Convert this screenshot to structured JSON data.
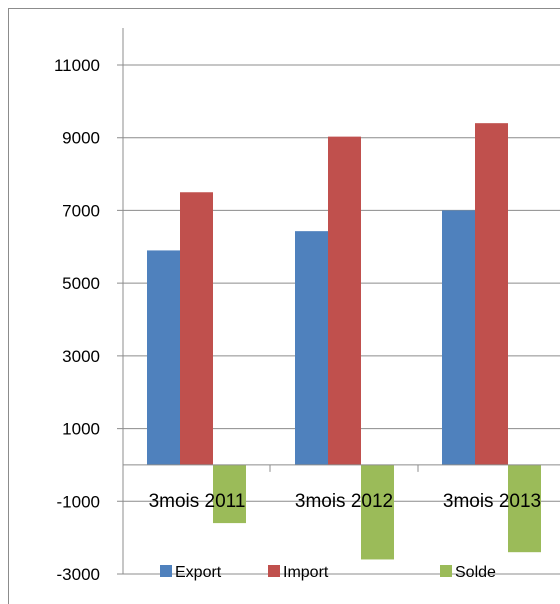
{
  "chart_data": {
    "type": "bar",
    "title": "",
    "xlabel": "",
    "ylabel": "",
    "categories": [
      "3mois 2011",
      "3mois 2012",
      "3mois 2013"
    ],
    "series": [
      {
        "name": "Export",
        "values": [
          5900,
          6430,
          7000
        ],
        "color": "#4f81bd"
      },
      {
        "name": "Import",
        "values": [
          7500,
          9030,
          9400
        ],
        "color": "#c0504d"
      },
      {
        "name": "Solde",
        "values": [
          -1600,
          -2600,
          -2400
        ],
        "color": "#9bbb59"
      }
    ],
    "ylim": [
      -3000,
      11000
    ],
    "yticks": [
      11000,
      9000,
      7000,
      5000,
      3000,
      1000,
      -1000,
      -3000
    ],
    "ytick_labels": [
      "11000",
      "9000",
      "7000",
      "5000",
      "3000",
      "1000",
      "-1000",
      "-3000"
    ],
    "grid": true,
    "legend_position": "bottom"
  }
}
